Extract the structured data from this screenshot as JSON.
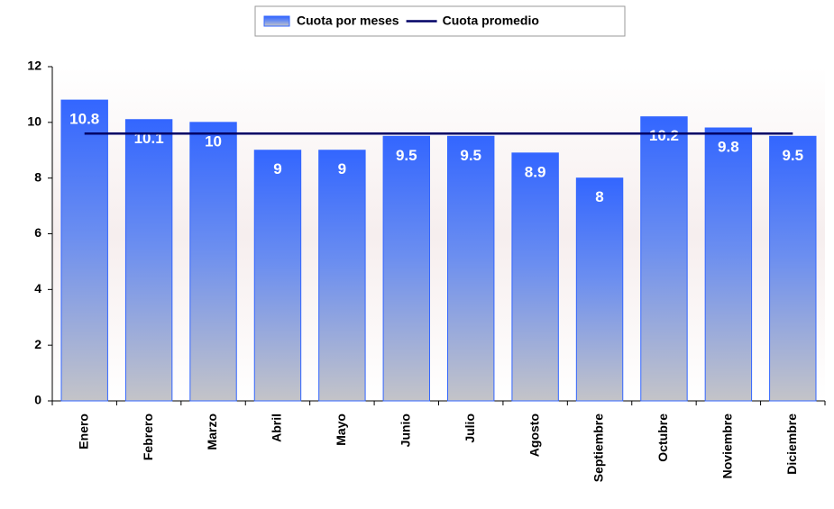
{
  "chart_data": {
    "type": "bar",
    "categories": [
      "Enero",
      "Febrero",
      "Marzo",
      "Abril",
      "Mayo",
      "Junio",
      "Julio",
      "Agosto",
      "Septiembre",
      "Octubre",
      "Noviembre",
      "Diciembre"
    ],
    "series": [
      {
        "name": "Cuota por meses",
        "type": "bar",
        "color": "#3366ff",
        "values": [
          10.8,
          10.1,
          10,
          9,
          9,
          9.5,
          9.5,
          8.9,
          8,
          10.2,
          9.8,
          9.5
        ]
      },
      {
        "name": "Cuota promedio",
        "type": "line",
        "color": "#000066",
        "values": [
          9.6,
          9.6,
          9.6,
          9.6,
          9.6,
          9.6,
          9.6,
          9.6,
          9.6,
          9.6,
          9.6,
          9.6
        ]
      }
    ],
    "ylim": [
      0,
      12
    ],
    "yticks": [
      0,
      2,
      4,
      6,
      8,
      10,
      12
    ],
    "grid": false
  }
}
